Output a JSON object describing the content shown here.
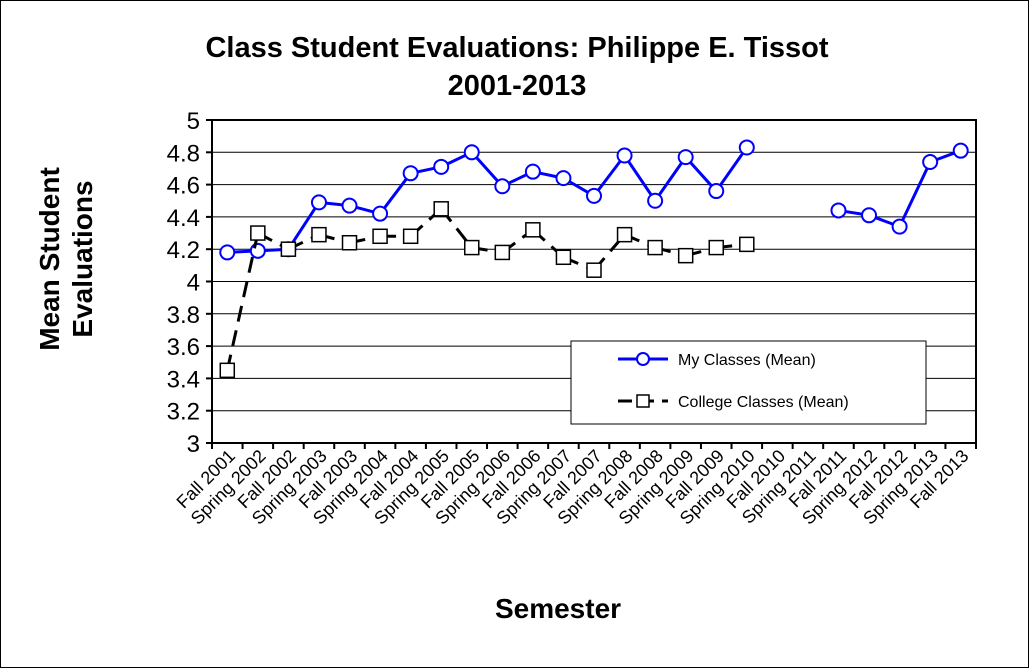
{
  "chart_data": {
    "type": "line",
    "title": "Class Student Evaluations: Philippe E. Tissot",
    "subtitle": "2001-2013",
    "xlabel": "Semester",
    "ylabel_line1": "Mean Student",
    "ylabel_line2": "Evaluations",
    "ylim": [
      3,
      5
    ],
    "ytick_step": 0.2,
    "grid": true,
    "legend_position": "lower-right",
    "categories": [
      "Fall 2001",
      "Spring 2002",
      "Fall 2002",
      "Spring 2003",
      "Fall 2003",
      "Spring 2004",
      "Fall 2004",
      "Spring 2005",
      "Fall 2005",
      "Spring 2006",
      "Fall 2006",
      "Spring 2007",
      "Fall 2007",
      "Spring 2008",
      "Fall 2008",
      "Spring 2009",
      "Fall 2009",
      "Spring 2010",
      "Fall 2010",
      "Spring 2011",
      "Fall 2011",
      "Spring 2012",
      "Fall 2012",
      "Spring 2013",
      "Fall 2013"
    ],
    "series": [
      {
        "name": "My Classes (Mean)",
        "color": "#0000ff",
        "marker": "circle",
        "line_style": "solid",
        "values": [
          4.18,
          4.19,
          4.2,
          4.49,
          4.47,
          4.42,
          4.67,
          4.71,
          4.8,
          4.59,
          4.68,
          4.64,
          4.53,
          4.78,
          4.5,
          4.77,
          4.56,
          4.83,
          null,
          null,
          4.44,
          4.41,
          4.34,
          4.74,
          4.81
        ]
      },
      {
        "name": "College Classes (Mean)",
        "color": "#000000",
        "marker": "square",
        "line_style": "dashed",
        "values": [
          3.45,
          4.3,
          4.2,
          4.29,
          4.24,
          4.28,
          4.28,
          4.45,
          4.21,
          4.18,
          4.32,
          4.15,
          4.07,
          4.29,
          4.21,
          4.16,
          4.21,
          4.23,
          null,
          null,
          null,
          null,
          null,
          null,
          null
        ]
      }
    ]
  }
}
